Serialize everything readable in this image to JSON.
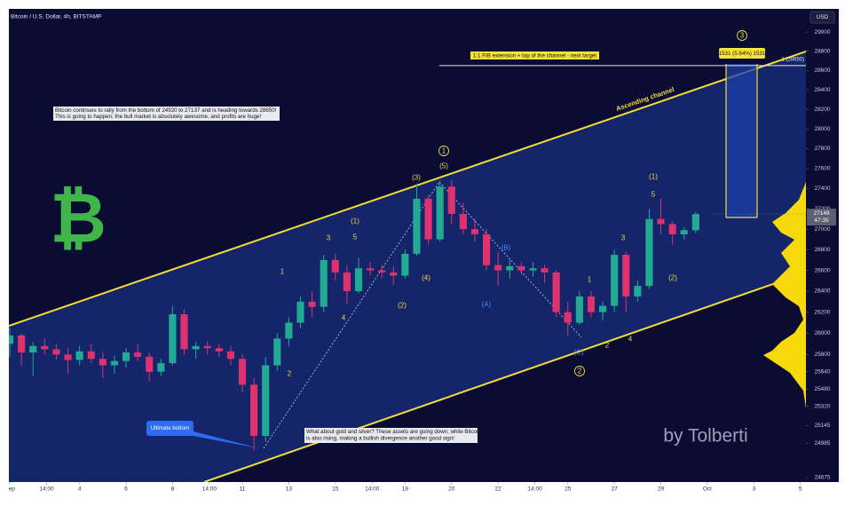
{
  "chart_data": {
    "type": "candlestick",
    "title": "Bitcoin / U.S. Dollar, 4h, BITSTAMP",
    "currency": "USD",
    "x": [
      1.0,
      1.5,
      2.0,
      2.5,
      3.0,
      3.5,
      4.0,
      4.5,
      5.0,
      5.5,
      6.0,
      6.5,
      7.0,
      7.5,
      8.0,
      8.5,
      9.0,
      9.5,
      10.0,
      10.5,
      11.0,
      11.5,
      12.0,
      12.5,
      13.0,
      13.5,
      14.0,
      14.5,
      15.0,
      15.5,
      16.0,
      16.5,
      17.0,
      17.5,
      18.0,
      18.5,
      19.0,
      19.5,
      20.0,
      20.5,
      21.0,
      21.5,
      22.0,
      22.5,
      23.0,
      23.5,
      24.0,
      24.5,
      25.0,
      25.5,
      26.0,
      26.5,
      27.0,
      27.5,
      28.0,
      28.5,
      29.0,
      29.5,
      30.0,
      30.5
    ],
    "open": [
      25900,
      25980,
      25820,
      25880,
      25850,
      25800,
      25750,
      25830,
      25760,
      25700,
      25740,
      25820,
      25780,
      25640,
      25720,
      26180,
      25850,
      25880,
      25860,
      25830,
      25760,
      25520,
      25050,
      25700,
      25950,
      26100,
      26300,
      26250,
      26700,
      26580,
      26400,
      26620,
      26600,
      26580,
      26550,
      26760,
      27300,
      26900,
      27420,
      27150,
      27000,
      26950,
      26650,
      26600,
      26640,
      26600,
      26620,
      26580,
      26200,
      26100,
      26350,
      26200,
      26260,
      26750,
      26350,
      26450,
      27100,
      27050,
      26950,
      26990
    ],
    "high": [
      26050,
      26000,
      25920,
      25950,
      25900,
      25860,
      25880,
      25900,
      25820,
      25790,
      25860,
      25900,
      25820,
      25760,
      26260,
      26230,
      25920,
      25930,
      25900,
      25880,
      25800,
      25580,
      25780,
      26000,
      26150,
      26350,
      26400,
      26750,
      26760,
      26650,
      26720,
      26680,
      26650,
      26640,
      26800,
      27450,
      27340,
      27480,
      27480,
      27260,
      27100,
      27000,
      26780,
      26700,
      26680,
      26680,
      26650,
      26600,
      26300,
      26400,
      26400,
      26300,
      26800,
      26780,
      26500,
      27200,
      27300,
      27080,
      27020,
      27170
    ],
    "low": [
      25780,
      25700,
      25600,
      25800,
      25750,
      25620,
      25700,
      25720,
      25580,
      25620,
      25680,
      25740,
      25550,
      25600,
      25700,
      25800,
      25760,
      25800,
      25780,
      25700,
      25450,
      24920,
      25000,
      25650,
      25880,
      26050,
      26150,
      26200,
      26500,
      26280,
      26380,
      26550,
      26520,
      26460,
      26520,
      26740,
      26850,
      26880,
      27050,
      26950,
      26880,
      26600,
      26450,
      26520,
      26560,
      26540,
      26480,
      26150,
      25980,
      26080,
      26150,
      26120,
      26200,
      26200,
      26300,
      26420,
      26950,
      26850,
      26900,
      26960
    ],
    "close": [
      25980,
      25820,
      25880,
      25850,
      25800,
      25750,
      25830,
      25760,
      25700,
      25740,
      25820,
      25780,
      25640,
      25720,
      26180,
      25850,
      25880,
      25860,
      25830,
      25760,
      25520,
      25050,
      25700,
      25950,
      26100,
      26300,
      26250,
      26700,
      26580,
      26400,
      26620,
      26600,
      26580,
      26550,
      26760,
      27300,
      26900,
      27420,
      27150,
      27000,
      26950,
      26650,
      26600,
      26640,
      26600,
      26620,
      26580,
      26200,
      26100,
      26350,
      26200,
      26260,
      26750,
      26350,
      26450,
      27100,
      27050,
      26950,
      26990,
      27149
    ],
    "up_color": "#22ab94",
    "down_color": "#e0316f",
    "log_scale": true,
    "grid": false,
    "xlim": [
      0.96,
      35.24
    ],
    "ylim": [
      24635,
      29245
    ],
    "xticks": [
      {
        "value": 1,
        "label": "Sep"
      },
      {
        "value": 2.583,
        "label": "14:00"
      },
      4,
      6,
      8,
      {
        "value": 9.583,
        "label": "14:00"
      },
      11,
      13,
      15,
      {
        "value": 16.583,
        "label": "14:00"
      },
      18,
      20,
      22,
      {
        "value": 23.583,
        "label": "14:00"
      },
      25,
      27,
      29,
      {
        "value": 31,
        "label": "Oct"
      },
      {
        "value": 33,
        "label": "3"
      },
      {
        "value": 35,
        "label": "5"
      }
    ],
    "yticks": [
      29000,
      28800,
      28600,
      28400,
      28200,
      28000,
      27800,
      27600,
      27400,
      27200,
      27000,
      26800,
      26600,
      26400,
      26200,
      26000,
      25800,
      25640,
      25480,
      25320,
      25145,
      24985,
      24675
    ],
    "last_price": 27149,
    "countdown": "47:35",
    "target": 28650,
    "target_label": "1 (28650)",
    "annotations": {
      "fib": "1:1 FIB extension + top of the channel - next target",
      "measure": "1531 (5.64%) 1531",
      "channel": "Ascending channel",
      "note1": [
        "Bitcoin continues to rally from the bottom of 24920 to 27137 and is heading towards 28650!",
        "This is going to happen; the bull market is absolutely awesome, and profits are huge!"
      ],
      "bottom": "Ultimate bottom",
      "note2": [
        "What about gold and silver? These assets are going down, while Bitcoin",
        "is also rising, making a bullish divergence another good sign!"
      ],
      "signature": "by Tolberti",
      "logo": "₿"
    },
    "wave_labels": [
      "1",
      "2",
      "3",
      "4",
      "(1)",
      "5",
      "(2)",
      "(3)",
      "(4)",
      "1",
      "(5)",
      "(B)",
      "(A)",
      "(C)",
      "2",
      "1",
      "2",
      "3",
      "4",
      "(1)",
      "5",
      "(2)",
      "3"
    ]
  }
}
